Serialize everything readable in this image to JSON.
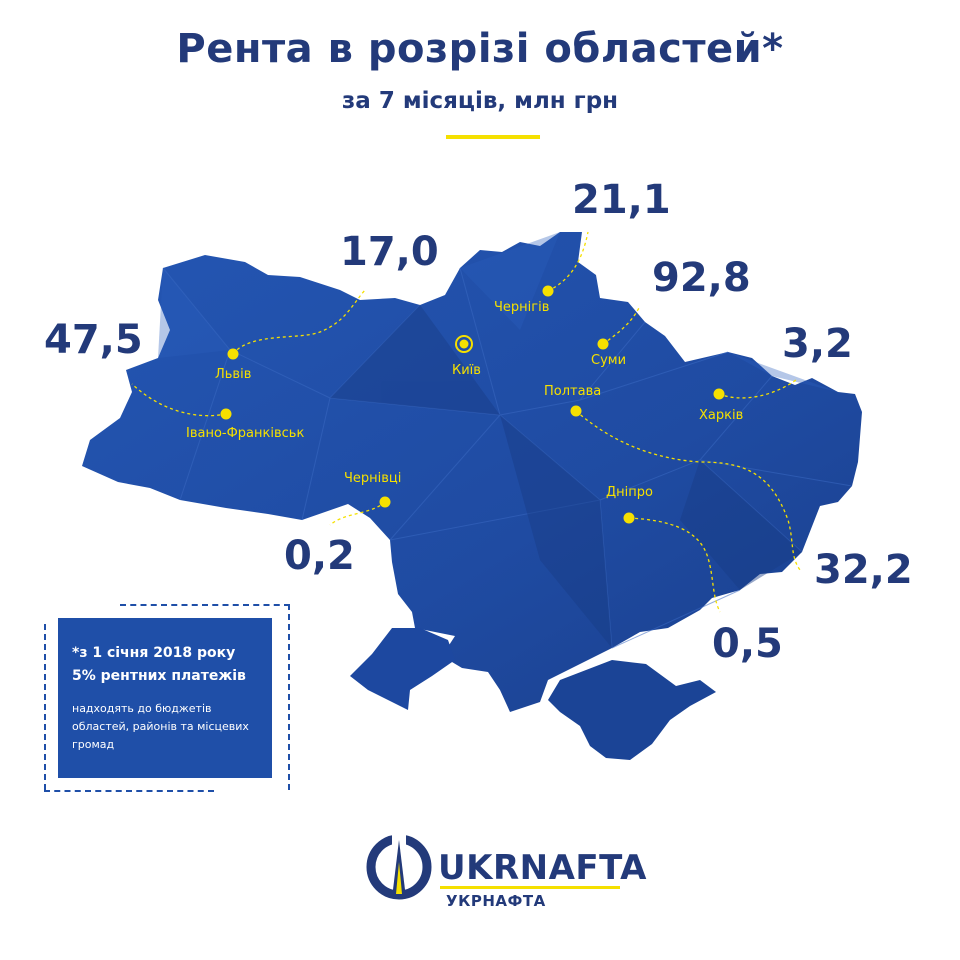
{
  "header": {
    "title": "Рента в розрізі областей*",
    "subtitle": "за 7 місяців, млн грн"
  },
  "regions": [
    {
      "city": "Львів",
      "value": "17,0"
    },
    {
      "city": "Івано-Франківськ",
      "value": "47,5"
    },
    {
      "city": "Чернівці",
      "value": "0,2"
    },
    {
      "city": "Чернігів",
      "value": "21,1"
    },
    {
      "city": "Суми",
      "value": "92,8"
    },
    {
      "city": "Харків",
      "value": "3,2"
    },
    {
      "city": "Полтава",
      "value": "32,2"
    },
    {
      "city": "Дніпро",
      "value": "0,5"
    }
  ],
  "capital": {
    "city": "Київ"
  },
  "note": {
    "line1": "*з 1 січня 2018 року",
    "line2": "5% рентних платежів",
    "small": [
      "надходять до бюджетів",
      "областей, районів та місцевих",
      "громад"
    ]
  },
  "logo": {
    "name": "UKRNAFTA",
    "sub": "УКРНАФТА"
  },
  "colors": {
    "title": "#233a7a",
    "map": "#1f4fa8",
    "accent": "#f5e000"
  },
  "icons": [
    "city-dot-icon",
    "capital-dot-icon",
    "ukrnafta-logo-icon"
  ]
}
